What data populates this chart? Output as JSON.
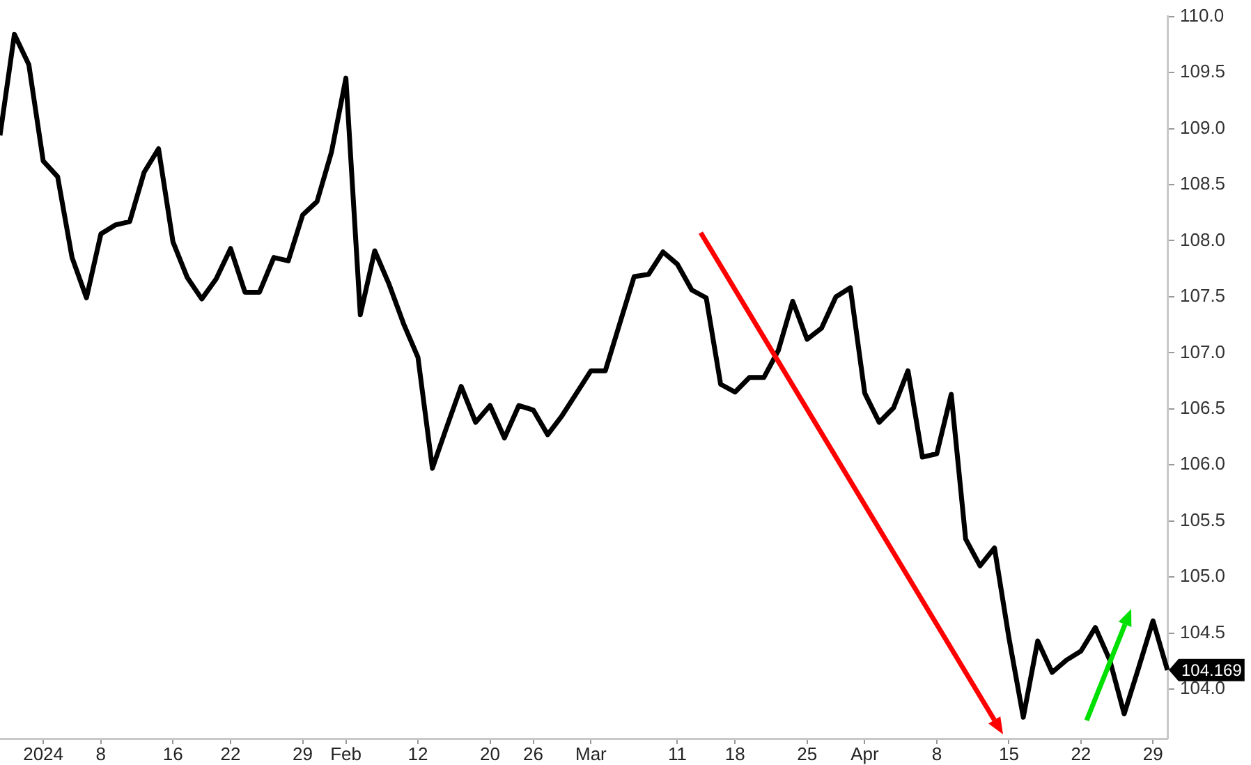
{
  "chart_data": {
    "type": "line",
    "categories": [
      null,
      null,
      null,
      "2024",
      null,
      null,
      null,
      "8",
      null,
      null,
      null,
      null,
      "16",
      null,
      null,
      null,
      "22",
      null,
      null,
      null,
      null,
      "29",
      null,
      null,
      "Feb",
      null,
      null,
      null,
      null,
      "12",
      null,
      null,
      null,
      null,
      "20",
      null,
      null,
      "26",
      null,
      null,
      null,
      "Mar",
      null,
      null,
      null,
      null,
      null,
      "11",
      null,
      null,
      null,
      "18",
      null,
      null,
      null,
      null,
      "25",
      null,
      null,
      null,
      "Apr",
      null,
      null,
      null,
      null,
      "8",
      null,
      null,
      null,
      null,
      "15",
      null,
      null,
      null,
      null,
      "22",
      null,
      null,
      null,
      null,
      "29",
      null
    ],
    "series": [
      {
        "color": "#000000",
        "values": [
          108.94,
          109.84,
          109.57,
          108.71,
          108.57,
          107.85,
          107.49,
          108.06,
          108.14,
          108.17,
          108.61,
          108.82,
          107.99,
          107.67,
          107.48,
          107.66,
          107.93,
          107.54,
          107.54,
          107.85,
          107.82,
          108.23,
          108.35,
          108.79,
          109.45,
          107.34,
          107.91,
          107.61,
          107.26,
          106.96,
          105.97,
          106.34,
          106.7,
          106.38,
          106.53,
          106.24,
          106.53,
          106.49,
          106.27,
          106.44,
          106.64,
          106.84,
          106.84,
          107.26,
          107.68,
          107.7,
          107.9,
          107.79,
          107.56,
          107.49,
          106.72,
          106.65,
          106.78,
          106.78,
          107.02,
          107.46,
          107.12,
          107.22,
          107.5,
          107.58,
          106.64,
          106.38,
          106.51,
          106.84,
          106.07,
          106.1,
          106.63,
          105.34,
          105.1,
          105.26,
          104.46,
          103.75,
          104.43,
          104.15,
          104.26,
          104.34,
          104.55,
          104.26,
          103.78,
          104.19,
          104.61,
          104.17
        ]
      }
    ],
    "ylim": [
      103.56,
      110.0
    ],
    "yticks": [
      {
        "value": 104,
        "label": "104.0"
      },
      {
        "value": 104.5,
        "label": "104.5"
      },
      {
        "value": 105,
        "label": "105.0"
      },
      {
        "value": 105.5,
        "label": "105.5"
      },
      {
        "value": 106,
        "label": "106.0"
      },
      {
        "value": 106.5,
        "label": "106.5"
      },
      {
        "value": 107,
        "label": "107.0"
      },
      {
        "value": 107.5,
        "label": "107.5"
      },
      {
        "value": 108,
        "label": "108.0"
      },
      {
        "value": 108.5,
        "label": "108.5"
      },
      {
        "value": 109,
        "label": "109.0"
      },
      {
        "value": 109.5,
        "label": "109.5"
      },
      {
        "value": 110,
        "label": "110.0"
      }
    ],
    "annotations": [
      "104.169"
    ],
    "legend": false,
    "marker": "none",
    "line_style": "solid"
  }
}
